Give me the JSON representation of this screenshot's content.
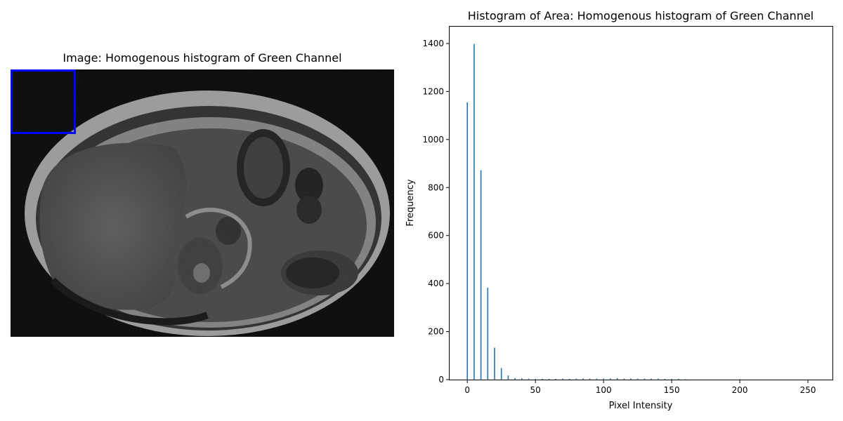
{
  "left_panel": {
    "title": "Image: Homogenous histogram of Green Channel",
    "roi_color": "#0000ff"
  },
  "chart_data": {
    "type": "bar",
    "title": "Histogram of Area: Homogenous histogram of Green Channel",
    "xlabel": "Pixel Intensity",
    "ylabel": "Frequency",
    "xlim": [
      -13,
      268
    ],
    "ylim": [
      0,
      1470
    ],
    "xticks": [
      0,
      50,
      100,
      150,
      200,
      250
    ],
    "yticks": [
      0,
      200,
      400,
      600,
      800,
      1000,
      1200,
      1400
    ],
    "bar_color": "#1f77b4",
    "bins": [
      {
        "x": 0,
        "value": 1155
      },
      {
        "x": 5,
        "value": 1398
      },
      {
        "x": 10,
        "value": 872
      },
      {
        "x": 15,
        "value": 383
      },
      {
        "x": 20,
        "value": 133
      },
      {
        "x": 25,
        "value": 48
      },
      {
        "x": 30,
        "value": 17
      },
      {
        "x": 35,
        "value": 6
      },
      {
        "x": 40,
        "value": 5
      },
      {
        "x": 45,
        "value": 4
      },
      {
        "x": 50,
        "value": 3
      },
      {
        "x": 55,
        "value": 3
      },
      {
        "x": 60,
        "value": 3
      },
      {
        "x": 65,
        "value": 3
      },
      {
        "x": 70,
        "value": 4
      },
      {
        "x": 75,
        "value": 3
      },
      {
        "x": 80,
        "value": 4
      },
      {
        "x": 85,
        "value": 4
      },
      {
        "x": 90,
        "value": 4
      },
      {
        "x": 95,
        "value": 4
      },
      {
        "x": 100,
        "value": 4
      },
      {
        "x": 105,
        "value": 5
      },
      {
        "x": 110,
        "value": 6
      },
      {
        "x": 115,
        "value": 4
      },
      {
        "x": 120,
        "value": 4
      },
      {
        "x": 125,
        "value": 4
      },
      {
        "x": 130,
        "value": 4
      },
      {
        "x": 135,
        "value": 4
      },
      {
        "x": 140,
        "value": 4
      },
      {
        "x": 145,
        "value": 3
      },
      {
        "x": 150,
        "value": 3
      },
      {
        "x": 155,
        "value": 3
      },
      {
        "x": 160,
        "value": 2
      },
      {
        "x": 200,
        "value": 2
      },
      {
        "x": 250,
        "value": 1
      }
    ]
  }
}
